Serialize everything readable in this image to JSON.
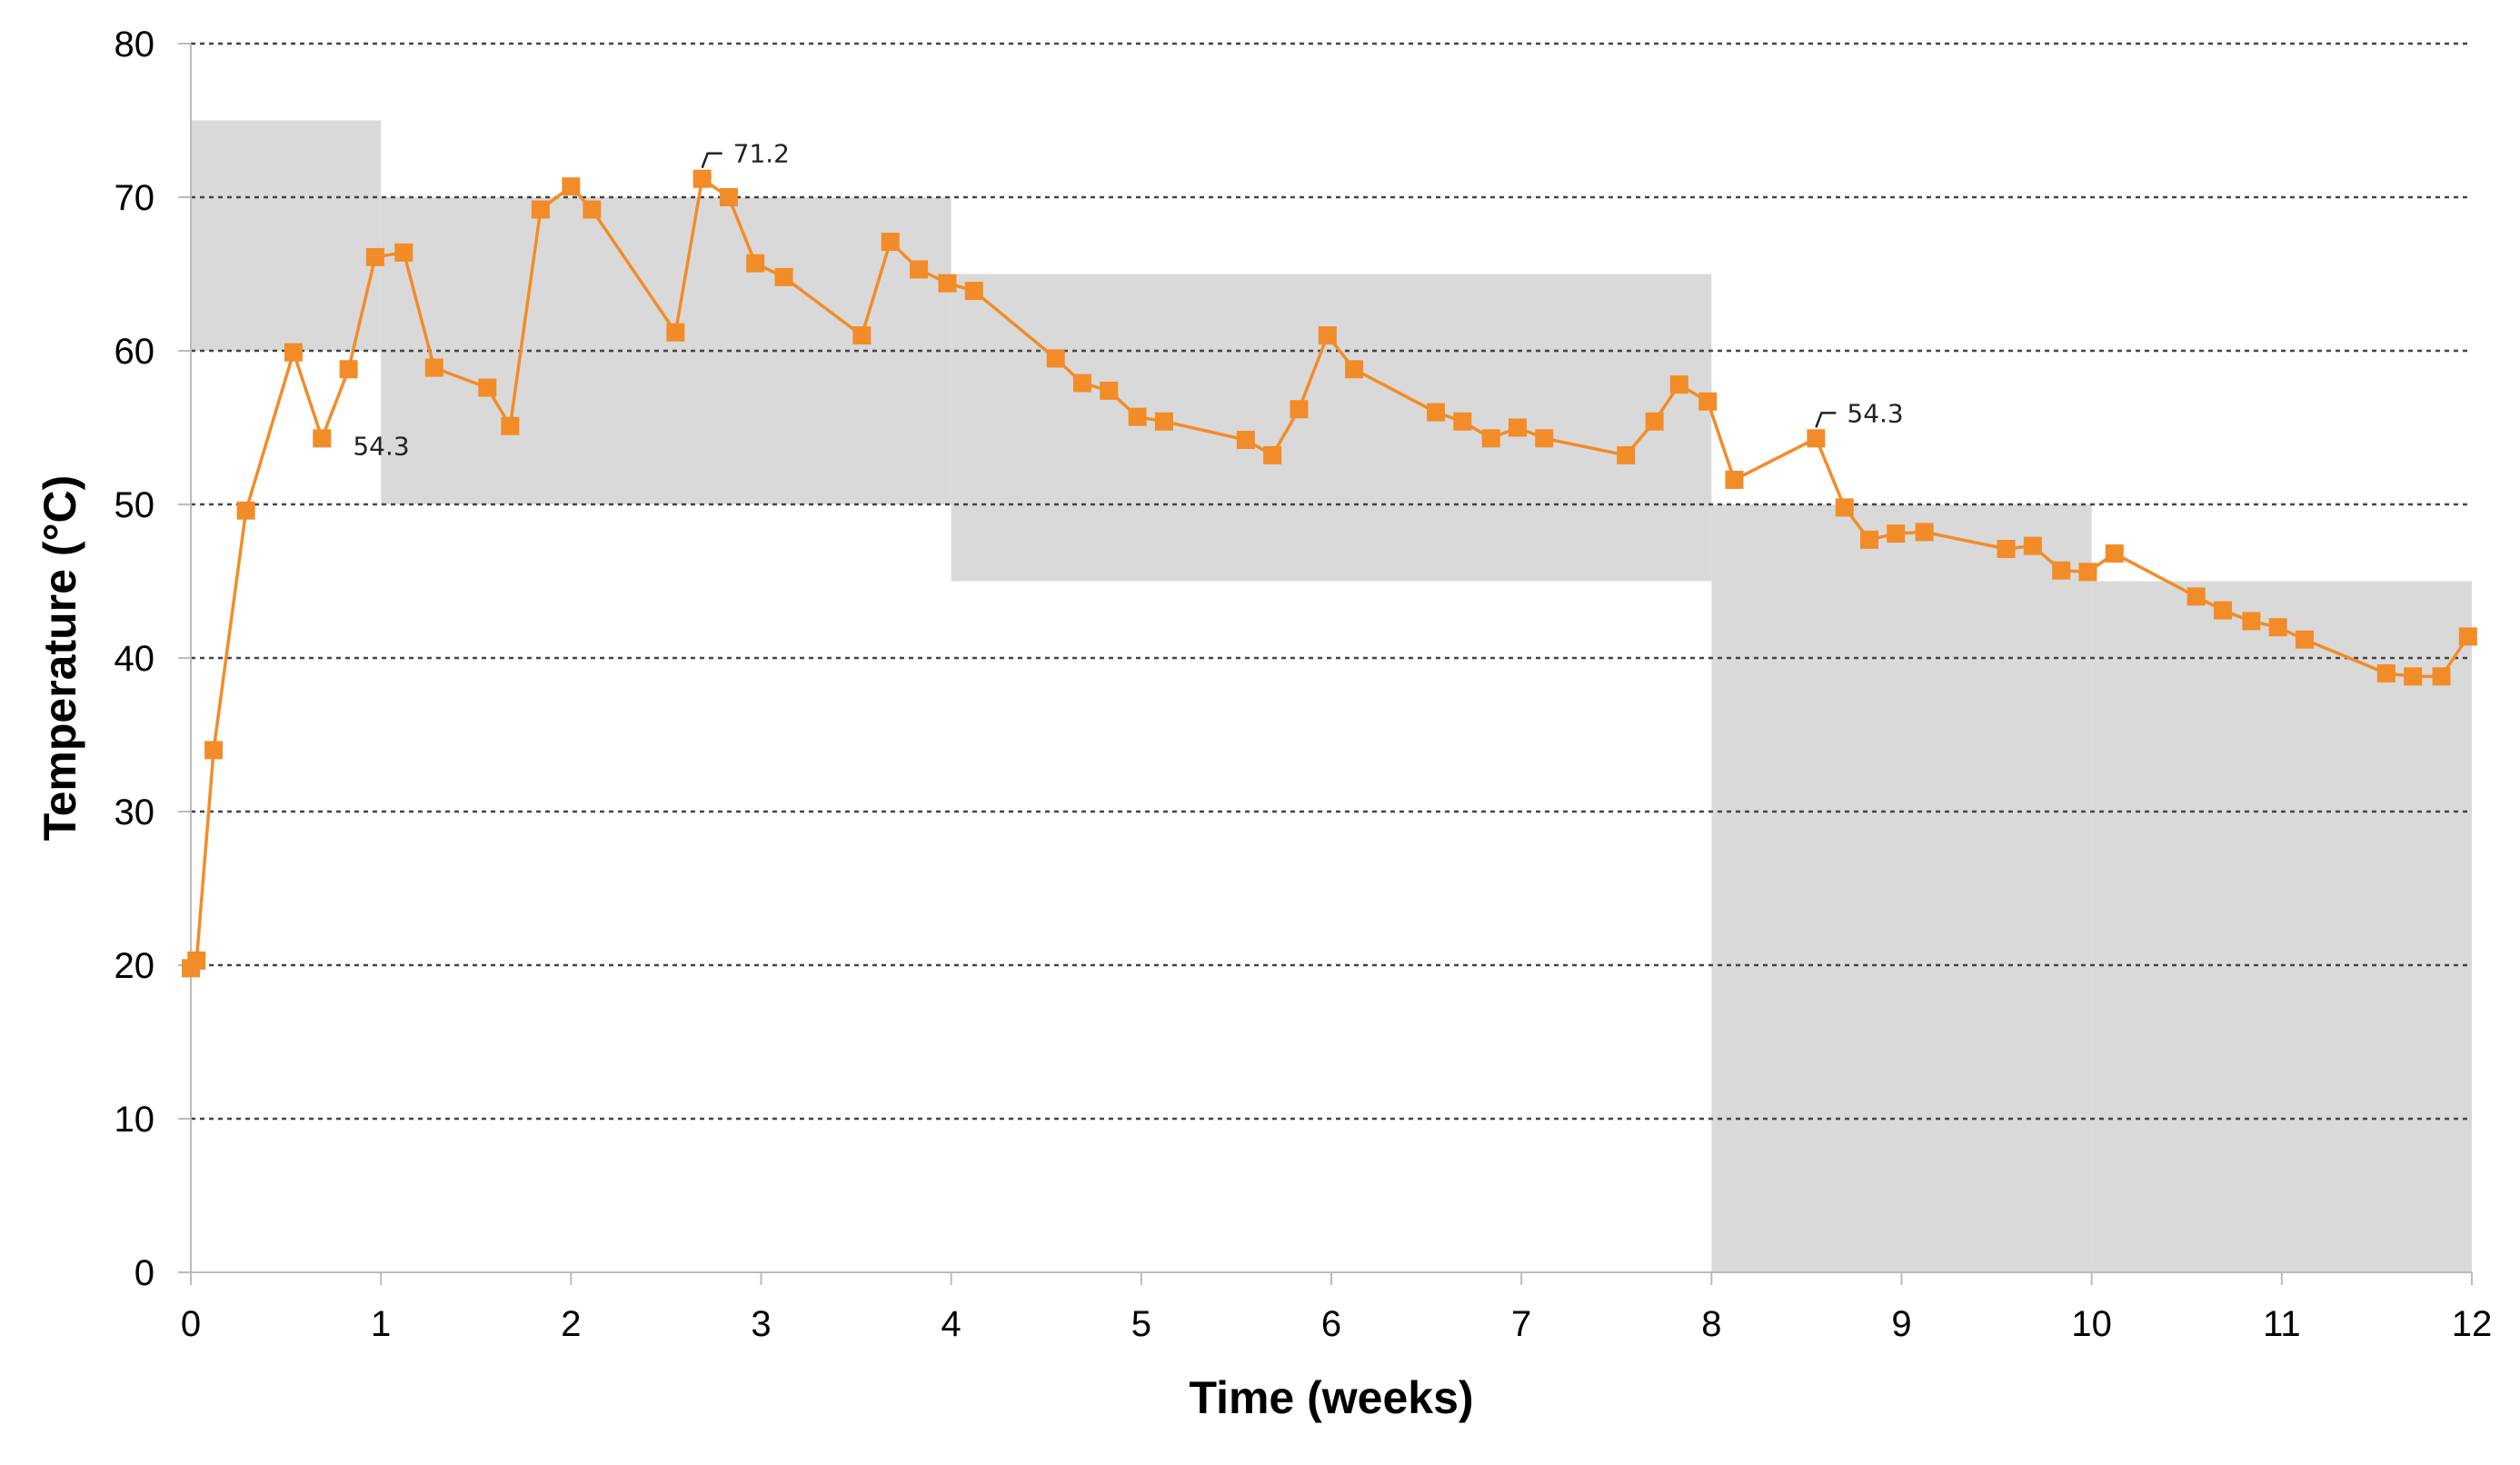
{
  "chart_data": {
    "type": "line",
    "title": "",
    "xlabel": "Time (weeks)",
    "ylabel": "Temperature (°C)",
    "xlim": [
      0,
      12
    ],
    "ylim": [
      0,
      80
    ],
    "xticks": [
      "0",
      "1",
      "2",
      "3",
      "4",
      "5",
      "6",
      "7",
      "8",
      "9",
      "10",
      "11",
      "12"
    ],
    "yticks": [
      "0",
      "10",
      "20",
      "30",
      "40",
      "50",
      "60",
      "70",
      "80"
    ],
    "grid": "horizontal dotted",
    "colors": {
      "series": "#F28C28",
      "band": "#D9D9D9"
    },
    "bands": [
      {
        "x": [
          0,
          1
        ],
        "y": [
          60,
          75
        ]
      },
      {
        "x": [
          1,
          4
        ],
        "y": [
          50,
          70
        ]
      },
      {
        "x": [
          4,
          8
        ],
        "y": [
          45,
          65
        ]
      },
      {
        "x": [
          8,
          10
        ],
        "y": [
          0,
          50
        ]
      },
      {
        "x": [
          10,
          12
        ],
        "y": [
          0,
          45
        ]
      }
    ],
    "series": [
      {
        "points": [
          [
            0.0,
            19.8
          ],
          [
            0.03,
            20.3
          ],
          [
            0.12,
            34.0
          ],
          [
            0.29,
            49.6
          ],
          [
            0.54,
            59.9
          ],
          [
            0.69,
            54.3
          ],
          [
            0.83,
            58.8
          ],
          [
            0.97,
            66.1
          ],
          [
            1.12,
            66.4
          ],
          [
            1.28,
            58.9
          ],
          [
            1.56,
            57.6
          ],
          [
            1.68,
            55.1
          ],
          [
            1.84,
            69.2
          ],
          [
            2.0,
            70.7
          ],
          [
            2.11,
            69.2
          ],
          [
            2.55,
            61.2
          ],
          [
            2.69,
            71.2
          ],
          [
            2.83,
            70.0
          ],
          [
            2.97,
            65.7
          ],
          [
            3.12,
            64.8
          ],
          [
            3.53,
            61.0
          ],
          [
            3.68,
            67.1
          ],
          [
            3.83,
            65.3
          ],
          [
            3.98,
            64.4
          ],
          [
            4.12,
            63.9
          ],
          [
            4.55,
            59.5
          ],
          [
            4.69,
            57.9
          ],
          [
            4.83,
            57.4
          ],
          [
            4.98,
            55.7
          ],
          [
            5.12,
            55.4
          ],
          [
            5.55,
            54.2
          ],
          [
            5.69,
            53.2
          ],
          [
            5.83,
            56.2
          ],
          [
            5.98,
            61.0
          ],
          [
            6.12,
            58.8
          ],
          [
            6.55,
            56.0
          ],
          [
            6.69,
            55.4
          ],
          [
            6.84,
            54.3
          ],
          [
            6.98,
            55.0
          ],
          [
            7.12,
            54.3
          ],
          [
            7.55,
            53.2
          ],
          [
            7.7,
            55.4
          ],
          [
            7.83,
            57.8
          ],
          [
            7.98,
            56.7
          ],
          [
            8.12,
            51.6
          ],
          [
            8.55,
            54.3
          ],
          [
            8.7,
            49.8
          ],
          [
            8.83,
            47.7
          ],
          [
            8.97,
            48.1
          ],
          [
            9.12,
            48.2
          ],
          [
            9.55,
            47.1
          ],
          [
            9.69,
            47.3
          ],
          [
            9.84,
            45.7
          ],
          [
            9.98,
            45.6
          ],
          [
            10.12,
            46.8
          ],
          [
            10.55,
            44.0
          ],
          [
            10.69,
            43.1
          ],
          [
            10.84,
            42.4
          ],
          [
            10.98,
            42.0
          ],
          [
            11.12,
            41.2
          ],
          [
            11.55,
            39.0
          ],
          [
            11.69,
            38.8
          ],
          [
            11.84,
            38.8
          ],
          [
            11.98,
            41.4
          ]
        ]
      }
    ],
    "annotations": [
      {
        "x": 0.69,
        "y": 54.3,
        "text": "54.3",
        "placement": "below-right"
      },
      {
        "x": 2.69,
        "y": 71.2,
        "text": "71.2",
        "placement": "above-right"
      },
      {
        "x": 8.55,
        "y": 54.3,
        "text": "54.3",
        "placement": "above-right"
      }
    ]
  }
}
